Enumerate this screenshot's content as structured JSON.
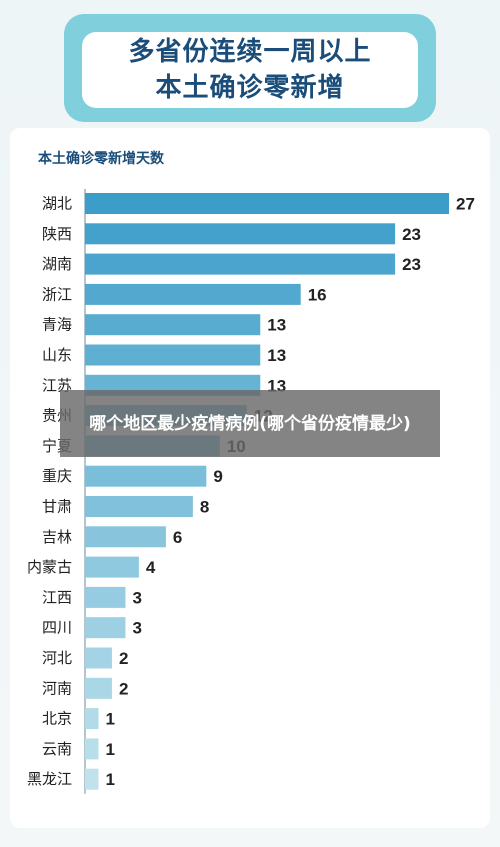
{
  "header": {
    "title_line1": "多省份连续一周以上",
    "title_line2": "本土确诊零新增"
  },
  "chart_data": {
    "type": "bar",
    "orientation": "horizontal",
    "title": "本土确诊零新增天数",
    "categories": [
      "湖北",
      "陕西",
      "湖南",
      "浙江",
      "青海",
      "山东",
      "江苏",
      "贵州",
      "宁夏",
      "重庆",
      "甘肃",
      "吉林",
      "内蒙古",
      "江西",
      "四川",
      "河北",
      "河南",
      "北京",
      "云南",
      "黑龙江"
    ],
    "values": [
      27,
      23,
      23,
      16,
      13,
      13,
      13,
      12,
      10,
      9,
      8,
      6,
      4,
      3,
      3,
      2,
      2,
      1,
      1,
      1
    ],
    "colors": {
      "dark": "#3d9dc9",
      "light": "#bfe2ec",
      "axis": "#9ab4c0",
      "label": "#222222"
    }
  },
  "overlay": {
    "text": "哪个地区最少疫情病例(哪个省份疫情最少)"
  }
}
